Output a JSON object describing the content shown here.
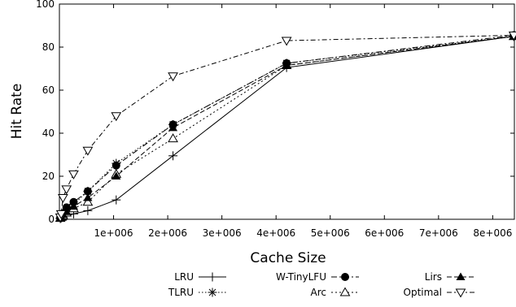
{
  "chart_data": {
    "type": "line",
    "title": "",
    "xlabel": "Cache Size",
    "ylabel": "Hit Rate",
    "xlim": [
      0,
      8400000
    ],
    "ylim": [
      0,
      100
    ],
    "x_ticks": [
      1000000,
      2000000,
      3000000,
      4000000,
      5000000,
      6000000,
      7000000,
      8000000
    ],
    "x_tick_labels": [
      "1e+006",
      "2e+006",
      "3e+006",
      "4e+006",
      "5e+006",
      "6e+006",
      "7e+006",
      "8e+006"
    ],
    "y_ticks": [
      0,
      20,
      40,
      60,
      80,
      100
    ],
    "y_tick_labels": [
      "0",
      "20",
      "40",
      "60",
      "80",
      "100"
    ],
    "grid": false,
    "legend_position": "bottom",
    "x": [
      16384,
      32768,
      65536,
      131072,
      262144,
      524288,
      1048576,
      2097152,
      4194304,
      8388608
    ],
    "series": [
      {
        "name": "LRU",
        "marker": "plus",
        "dash": "none",
        "values": [
          0.3,
          0.6,
          1.0,
          1.5,
          2.5,
          4.0,
          9.0,
          29.5,
          70.5,
          85.0
        ]
      },
      {
        "name": "TLRU",
        "marker": "star",
        "dash": "1.5,2.5",
        "values": [
          0.6,
          1.4,
          2.5,
          4.0,
          7.0,
          13.0,
          26.0,
          44.0,
          72.5,
          85.0
        ]
      },
      {
        "name": "W-TinyLFU",
        "marker": "circle",
        "dash": "7,3,2,3",
        "values": [
          0.8,
          1.6,
          2.8,
          5.5,
          8.0,
          13.0,
          25.0,
          44.0,
          72.5,
          85.5
        ]
      },
      {
        "name": "Arc",
        "marker": "triangle-up-open",
        "dash": "2,3",
        "values": [
          0.5,
          1.0,
          1.8,
          3.0,
          5.0,
          8.0,
          21.0,
          37.5,
          71.5,
          85.0
        ]
      },
      {
        "name": "Lirs",
        "marker": "triangle-up",
        "dash": "6,3",
        "values": [
          0.6,
          1.2,
          2.2,
          3.5,
          6.0,
          10.0,
          20.0,
          42.5,
          71.5,
          85.0
        ]
      },
      {
        "name": "Optimal",
        "marker": "triangle-down-open",
        "dash": "6,3,2,3",
        "values": [
          1.0,
          2.5,
          10.0,
          14.0,
          21.0,
          32.0,
          48.0,
          66.5,
          83.0,
          85.5
        ]
      }
    ]
  }
}
